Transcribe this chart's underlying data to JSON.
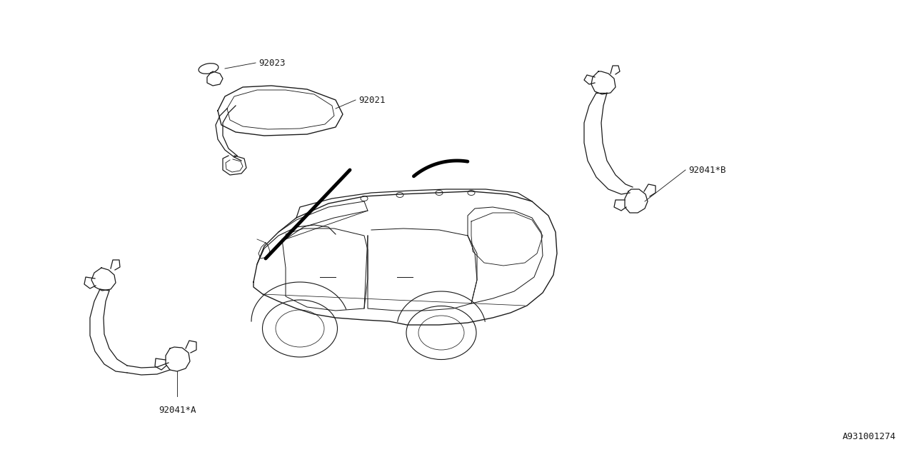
{
  "bg_color": "#ffffff",
  "line_color": "#1a1a1a",
  "text_color": "#1a1a1a",
  "diagram_id": "A931001274",
  "label_92023": "92023",
  "label_92021": "92021",
  "label_92041B": "92041*B",
  "label_92041A": "92041*A",
  "font_size": 9,
  "lw": 0.9,
  "lw_thick": 3.5
}
